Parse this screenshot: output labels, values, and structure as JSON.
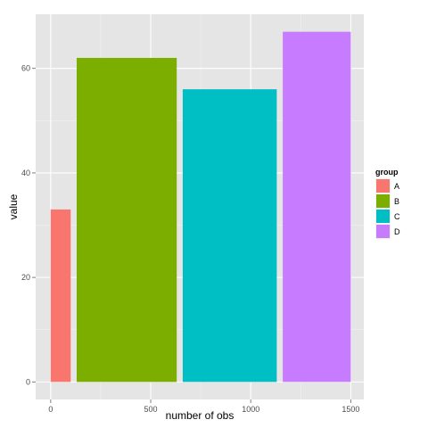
{
  "chart_data": {
    "type": "bar",
    "variable_width": true,
    "xlabel": "number of obs",
    "ylabel": "value",
    "xlim": [
      -75,
      1565
    ],
    "ylim": [
      -3.35,
      70.35
    ],
    "x_ticks": [
      0,
      500,
      1000,
      1500
    ],
    "y_ticks": [
      0,
      20,
      40,
      60
    ],
    "x_tick_labels": [
      "0",
      "500",
      "1000",
      "1500"
    ],
    "y_tick_labels": [
      "0",
      "20",
      "40",
      "60"
    ],
    "grid": true,
    "legend_title": "group",
    "legend_position": "right",
    "categories": [
      "A",
      "B",
      "C",
      "D"
    ],
    "bars": [
      {
        "group": "A",
        "xmin": 0,
        "xmax": 100,
        "value": 33,
        "color": "#F8766D"
      },
      {
        "group": "B",
        "xmin": 130,
        "xmax": 630,
        "value": 62,
        "color": "#7CAE00"
      },
      {
        "group": "C",
        "xmin": 660,
        "xmax": 1130,
        "value": 56,
        "color": "#00BFC4"
      },
      {
        "group": "D",
        "xmin": 1160,
        "xmax": 1500,
        "value": 67,
        "color": "#C77CFF"
      }
    ]
  },
  "colors": {
    "panel_background": "#E5E5E5",
    "grid_major": "#FFFFFF",
    "grid_minor": "#F2F2F2"
  }
}
